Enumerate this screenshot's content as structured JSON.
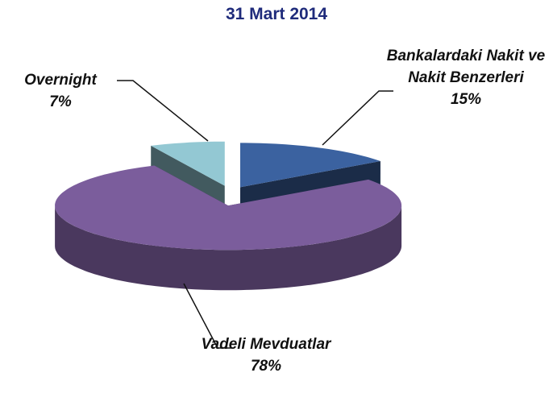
{
  "chart_data": {
    "type": "pie",
    "title": "31 Mart 2014",
    "categories": [
      "Bankalardaki Nakit ve Nakit Benzerleri",
      "Vadeli Mevduatlar",
      "Overnight"
    ],
    "values": [
      15,
      78,
      7
    ],
    "value_labels": [
      "15%",
      "78%",
      "7%"
    ],
    "colors": [
      "#3b62a0",
      "#7b5d9c",
      "#93c8d3"
    ]
  }
}
